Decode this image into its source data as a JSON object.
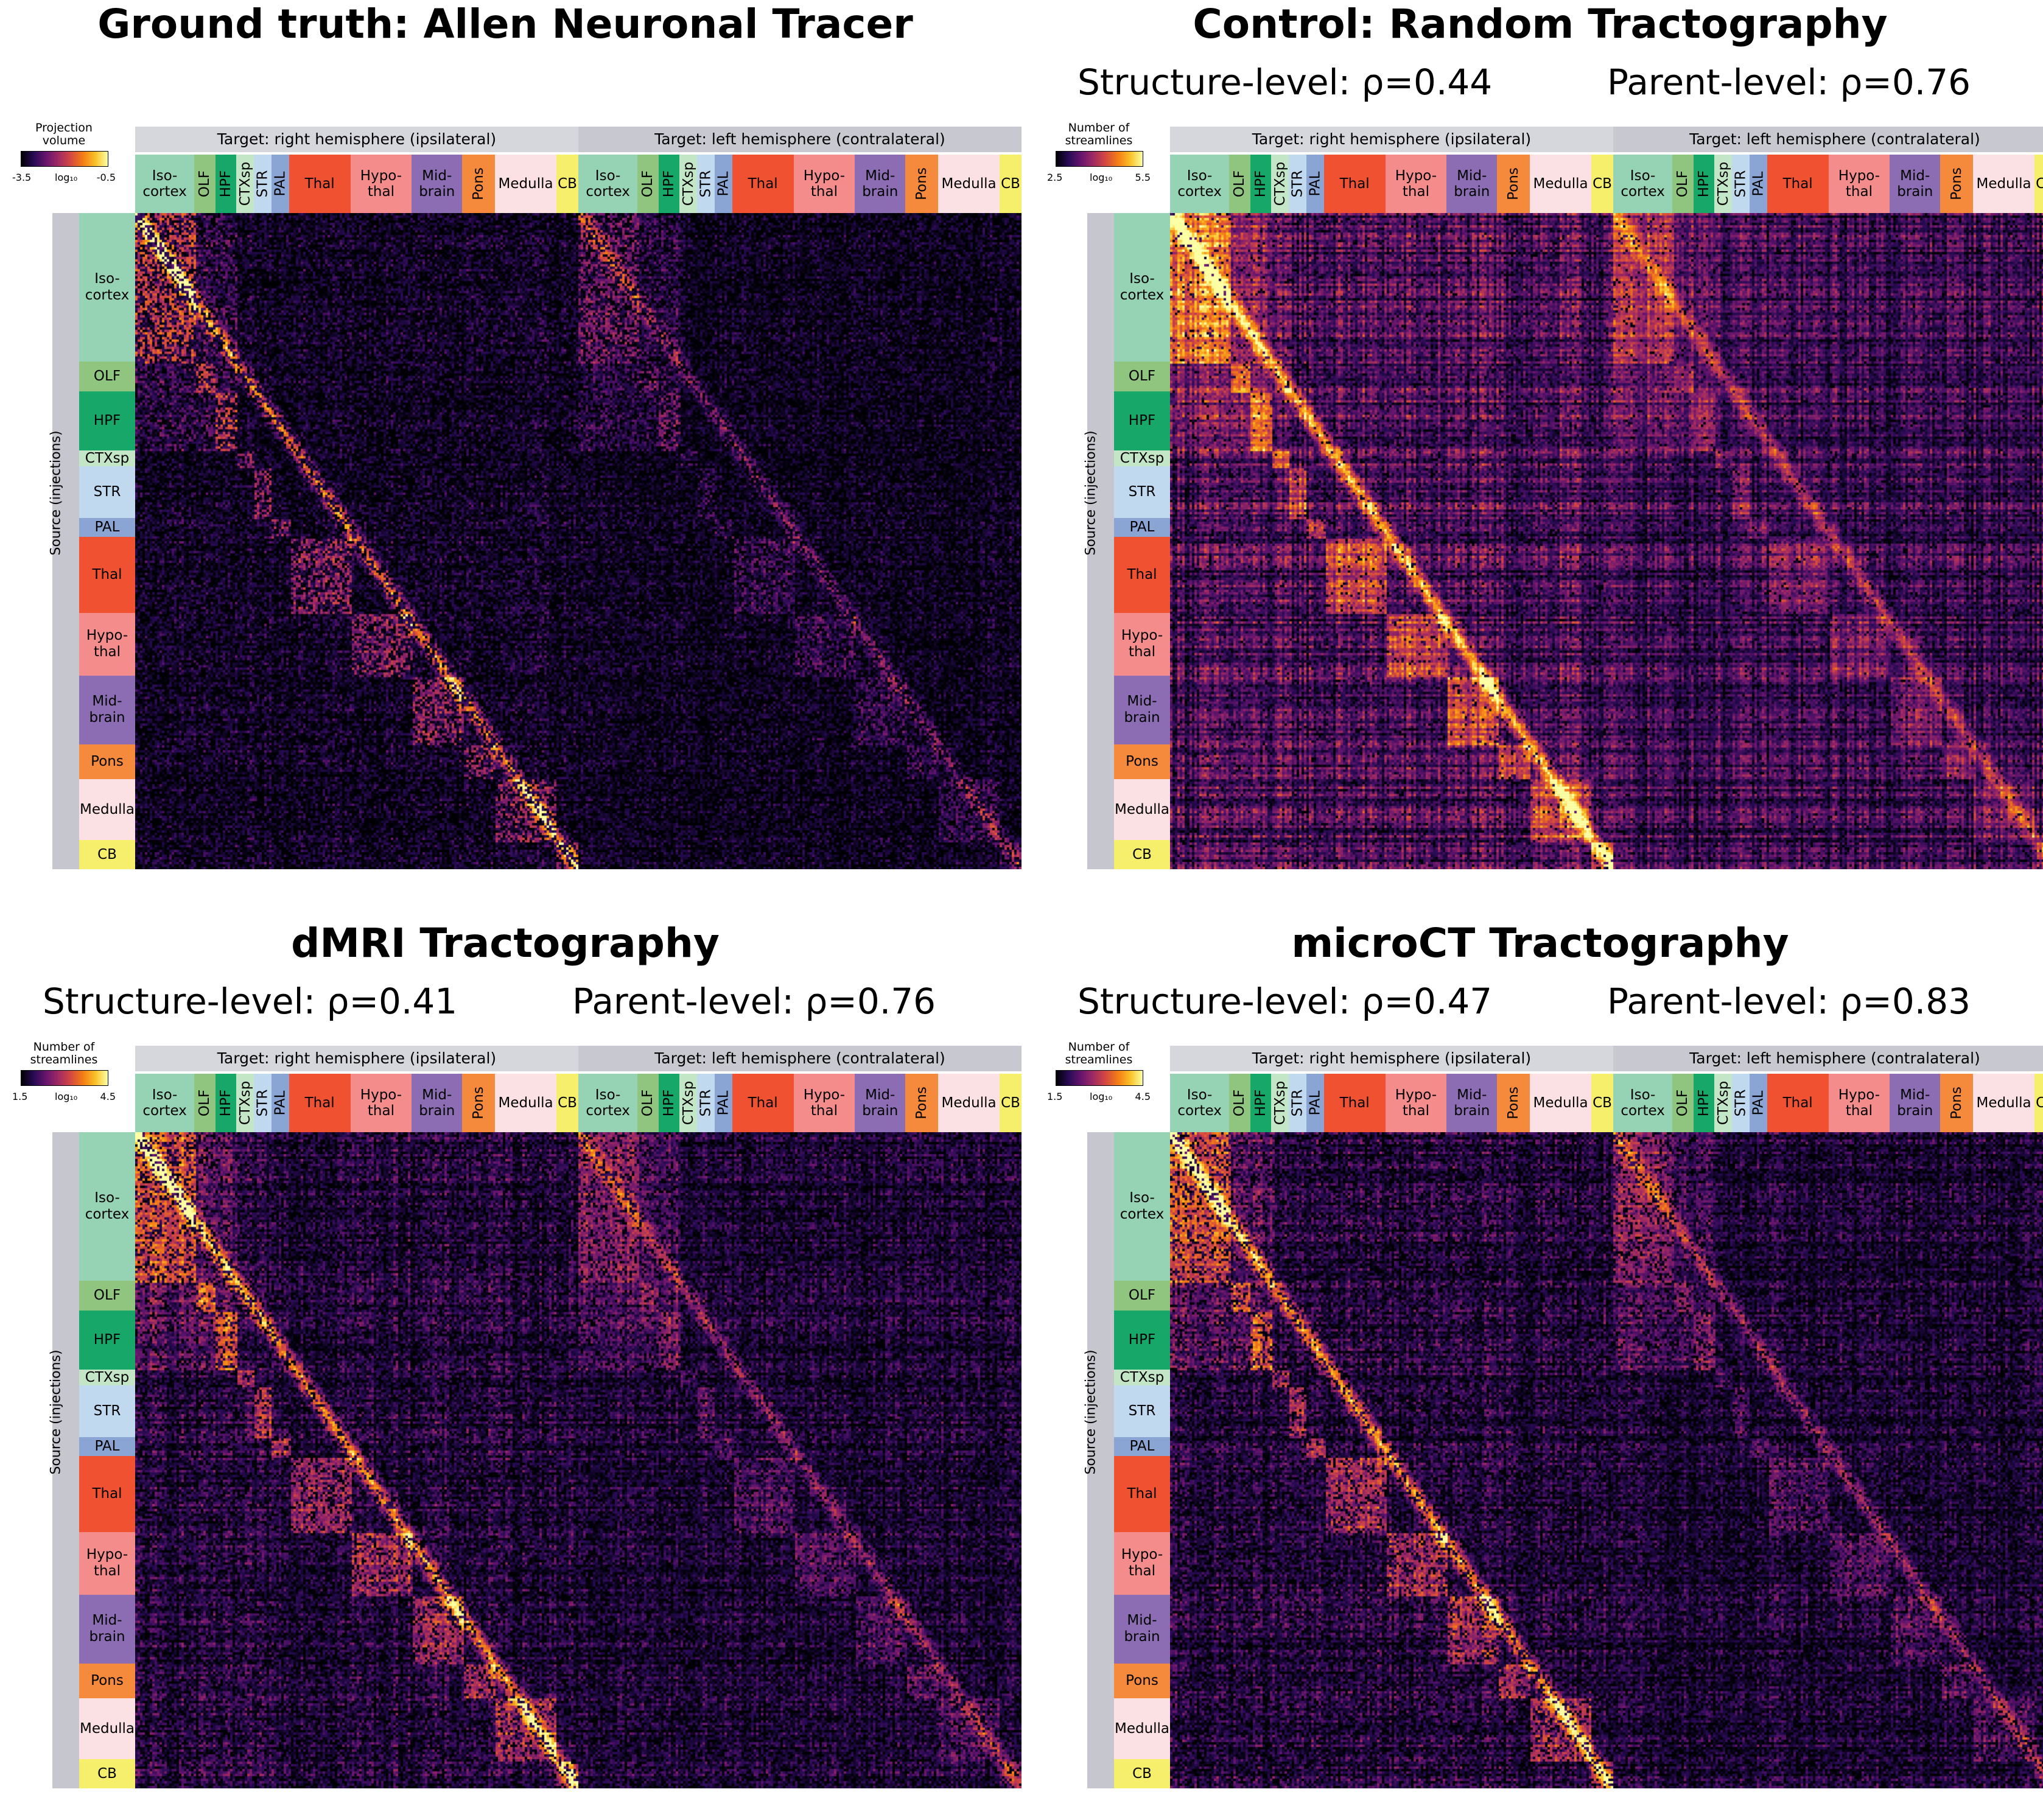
{
  "chart_data": [
    {
      "type": "heatmap",
      "title": "Ground truth: Allen Neuronal Tracer",
      "subtitles": [],
      "colorbar": {
        "title": "Projection volume",
        "scale_label": "log₁₀",
        "min": "-3.5",
        "max": "-0.5",
        "colormap": "inferno"
      },
      "x_header_right": "Target: right hemisphere (ipsilateral)",
      "x_header_left": "Target: left hemisphere (contralateral)",
      "y_label": "Source (injections)",
      "intensity_profile": "sparse"
    },
    {
      "type": "heatmap",
      "title": "Control: Random Tractography",
      "subtitles": [
        "Structure-level: ρ=0.44",
        "Parent-level: ρ=0.76"
      ],
      "colorbar": {
        "title": "Number of streamlines",
        "scale_label": "log₁₀",
        "min": "2.5",
        "max": "5.5",
        "colormap": "inferno"
      },
      "x_header_right": "Target: right hemisphere (ipsilateral)",
      "x_header_left": "Target: left hemisphere (contralateral)",
      "y_label": "Source (injections)",
      "intensity_profile": "dense"
    },
    {
      "type": "heatmap",
      "title": "dMRI Tractography",
      "subtitles": [
        "Structure-level: ρ=0.41",
        "Parent-level: ρ=0.76"
      ],
      "colorbar": {
        "title": "Number of streamlines",
        "scale_label": "log₁₀",
        "min": "1.5",
        "max": "4.5",
        "colormap": "inferno"
      },
      "x_header_right": "Target: right hemisphere (ipsilateral)",
      "x_header_left": "Target: left hemisphere (contralateral)",
      "y_label": "Source (injections)",
      "intensity_profile": "medium"
    },
    {
      "type": "heatmap",
      "title": "microCT Tractography",
      "subtitles": [
        "Structure-level: ρ=0.47",
        "Parent-level: ρ=0.83"
      ],
      "colorbar": {
        "title": "Number of streamlines",
        "scale_label": "log₁₀",
        "min": "1.5",
        "max": "4.5",
        "colormap": "inferno"
      },
      "x_header_right": "Target: right hemisphere (ipsilateral)",
      "x_header_left": "Target: left hemisphere (contralateral)",
      "y_label": "Source (injections)",
      "intensity_profile": "medium"
    }
  ],
  "regions": [
    {
      "id": "iso",
      "label": "Iso-\ncortex",
      "color": "#96d3b4",
      "col_frac": 0.135,
      "row_frac": 0.215,
      "vertical": false
    },
    {
      "id": "olf",
      "label": "OLF",
      "color": "#8fc57f",
      "col_frac": 0.048,
      "row_frac": 0.043,
      "vertical": true
    },
    {
      "id": "hpf",
      "label": "HPF",
      "color": "#17a768",
      "col_frac": 0.048,
      "row_frac": 0.085,
      "vertical": true
    },
    {
      "id": "ctxsp",
      "label": "CTXsp",
      "color": "#c3e6c7",
      "col_frac": 0.04,
      "row_frac": 0.023,
      "vertical": true
    },
    {
      "id": "str",
      "label": "STR",
      "color": "#c0d9ef",
      "col_frac": 0.04,
      "row_frac": 0.075,
      "vertical": true
    },
    {
      "id": "pal",
      "label": "PAL",
      "color": "#8aa5d3",
      "col_frac": 0.04,
      "row_frac": 0.027,
      "vertical": true
    },
    {
      "id": "thal",
      "label": "Thal",
      "color": "#ef5131",
      "col_frac": 0.14,
      "row_frac": 0.11,
      "vertical": false
    },
    {
      "id": "hypo",
      "label": "Hypo-\nthal",
      "color": "#f58c8c",
      "col_frac": 0.14,
      "row_frac": 0.09,
      "vertical": false
    },
    {
      "id": "mid",
      "label": "Mid-\nbrain",
      "color": "#8c6db4",
      "col_frac": 0.115,
      "row_frac": 0.1,
      "vertical": false
    },
    {
      "id": "pons",
      "label": "Pons",
      "color": "#f58a3c",
      "col_frac": 0.075,
      "row_frac": 0.05,
      "vertical": true
    },
    {
      "id": "med",
      "label": "Medulla",
      "color": "#fbe0e4",
      "col_frac": 0.14,
      "row_frac": 0.088,
      "vertical": false
    },
    {
      "id": "cb",
      "label": "CB",
      "color": "#f6ef6c",
      "col_frac": 0.05,
      "row_frac": 0.042,
      "vertical": false
    }
  ]
}
